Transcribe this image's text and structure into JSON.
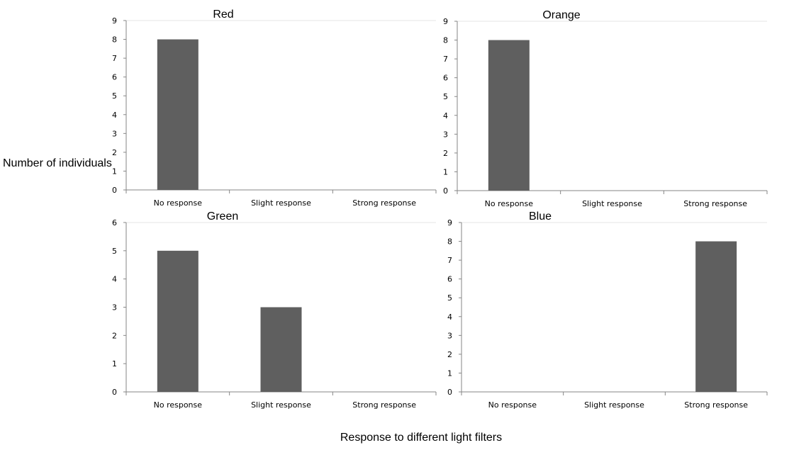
{
  "figure": {
    "ylabel": "Number of individuals",
    "xlabel": "Response to different light filters"
  },
  "colors": {
    "bar": "#5f5f5f",
    "axis": "#868686",
    "gridline": "#e6e6e6"
  },
  "chart_data": [
    {
      "type": "bar",
      "title": "Red",
      "categories": [
        "No response",
        "Slight response",
        "Strong response"
      ],
      "values": [
        8,
        0,
        0
      ],
      "ylim": [
        0,
        9
      ],
      "yticks": [
        0,
        1,
        2,
        3,
        4,
        5,
        6,
        7,
        8,
        9
      ]
    },
    {
      "type": "bar",
      "title": "Orange",
      "categories": [
        "No response",
        "Slight response",
        "Strong response"
      ],
      "values": [
        8,
        0,
        0
      ],
      "ylim": [
        0,
        9
      ],
      "yticks": [
        0,
        1,
        2,
        3,
        4,
        5,
        6,
        7,
        8,
        9
      ]
    },
    {
      "type": "bar",
      "title": "Green",
      "categories": [
        "No response",
        "Slight response",
        "Strong response"
      ],
      "values": [
        5,
        3,
        0
      ],
      "ylim": [
        0,
        6
      ],
      "yticks": [
        0,
        1,
        2,
        3,
        4,
        5,
        6
      ]
    },
    {
      "type": "bar",
      "title": "Blue",
      "categories": [
        "No response",
        "Slight response",
        "Strong response"
      ],
      "values": [
        0,
        0,
        8
      ],
      "ylim": [
        0,
        9
      ],
      "yticks": [
        0,
        1,
        2,
        3,
        4,
        5,
        6,
        7,
        8,
        9
      ]
    }
  ]
}
